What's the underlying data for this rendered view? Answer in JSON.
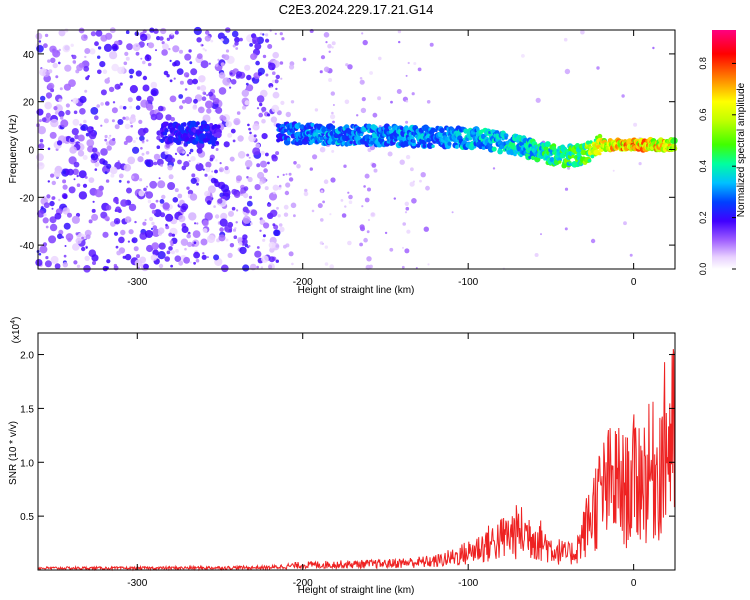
{
  "title": "C2E3.2024.229.17.21.G14",
  "chart_data": [
    {
      "type": "heatmap",
      "xlabel": "Height of straight line (km)",
      "ylabel": "Frequency (Hz)",
      "xlim": [
        -360,
        25
      ],
      "ylim": [
        -50,
        50
      ],
      "xticks": [
        -300,
        -200,
        -100,
        0
      ],
      "yticks": [
        -40,
        -20,
        0,
        20,
        40
      ],
      "colorbar": {
        "label": "Normalized spectral amplitude",
        "range": [
          0,
          0.93
        ],
        "ticks": [
          0.0,
          0.2,
          0.4,
          0.6,
          0.8
        ]
      },
      "signal_track": {
        "description_free": true,
        "x": [
          -280,
          -260,
          -240,
          -210,
          -180,
          -150,
          -120,
          -100,
          -80,
          -60,
          -45,
          -30,
          -20,
          -10,
          0,
          10,
          25
        ],
        "freq": [
          7,
          7,
          5,
          7,
          6,
          6,
          5,
          5,
          3,
          0,
          -3,
          -2,
          2,
          2,
          2,
          2,
          2
        ],
        "amplitude": [
          0.25,
          0.3,
          0.15,
          0.35,
          0.4,
          0.4,
          0.4,
          0.45,
          0.45,
          0.5,
          0.55,
          0.6,
          0.8,
          0.85,
          0.9,
          0.85,
          0.8
        ]
      }
    },
    {
      "type": "line",
      "xlabel": "Height of straight line (km)",
      "ylabel": "SNR (10 * v/v)",
      "yscale_label": "(x10",
      "yscale_exp": "4",
      "xlim": [
        -360,
        25
      ],
      "ylim": [
        0,
        2.2
      ],
      "xticks": [
        -300,
        -200,
        -100,
        0
      ],
      "yticks": [
        0.5,
        1.0,
        1.5,
        2.0
      ],
      "color": "#ee2222",
      "envelope": {
        "x": [
          -360,
          -300,
          -220,
          -200,
          -150,
          -120,
          -110,
          -100,
          -90,
          -80,
          -70,
          -60,
          -50,
          -40,
          -35,
          -30,
          -25,
          -20,
          -15,
          -10,
          -5,
          0,
          5,
          10,
          15,
          20,
          25
        ],
        "y": [
          0.03,
          0.03,
          0.04,
          0.08,
          0.1,
          0.14,
          0.2,
          0.28,
          0.4,
          0.5,
          0.62,
          0.55,
          0.35,
          0.25,
          0.3,
          0.6,
          0.95,
          1.2,
          1.35,
          1.4,
          1.25,
          1.45,
          1.5,
          1.55,
          1.65,
          2.05,
          2.15
        ]
      }
    }
  ]
}
